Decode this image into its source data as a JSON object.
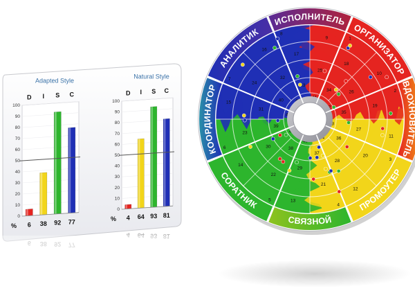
{
  "colors": {
    "red": "#e52420",
    "yellow": "#f2d51a",
    "green": "#2db52d",
    "blue": "#1f2fb5",
    "purple": "#7a2f8f",
    "bg_card": "#f4f4f6"
  },
  "chart_data": [
    {
      "type": "bar",
      "title": "Adapted Style",
      "categories": [
        "D",
        "I",
        "S",
        "C"
      ],
      "values": [
        6,
        38,
        92,
        77
      ],
      "percent_label": "%",
      "ylim": [
        0,
        100
      ],
      "yticks": [
        0,
        10,
        20,
        30,
        40,
        50,
        60,
        70,
        80,
        90,
        100
      ],
      "midline": 50
    },
    {
      "type": "bar",
      "title": "Natural Style",
      "categories": [
        "D",
        "I",
        "S",
        "C"
      ],
      "values": [
        4,
        64,
        93,
        81
      ],
      "percent_label": "%",
      "ylim": [
        0,
        100
      ],
      "yticks": [
        0,
        10,
        20,
        30,
        40,
        50,
        60,
        70,
        80,
        90,
        100
      ],
      "midline": 50
    }
  ],
  "wheel": {
    "segments": [
      {
        "label": "ИСПОЛНИТЕЛЬ",
        "icon": "segment-executor"
      },
      {
        "label": "ОРГАНИЗАТОР",
        "icon": "segment-organizer"
      },
      {
        "label": "ВДОХНОВИТЕЛЬ",
        "icon": "segment-inspirer"
      },
      {
        "label": "ПРОМОУТЕР",
        "icon": "segment-promoter"
      },
      {
        "label": "СВЯЗНОЙ",
        "icon": "segment-liaison"
      },
      {
        "label": "СОРАТНИК",
        "icon": "segment-associate"
      },
      {
        "label": "КООРДИНАТОР",
        "icon": "segment-coordinator"
      },
      {
        "label": "АНАЛИТИК",
        "icon": "segment-analyst"
      }
    ],
    "rim_numbers": [
      "8",
      "1",
      "2",
      "3",
      "4",
      "5",
      "6",
      "7"
    ],
    "grid_numbers": [
      "9",
      "10",
      "11",
      "12",
      "13",
      "14",
      "15",
      "16",
      "17",
      "18",
      "19",
      "20",
      "21",
      "22",
      "23",
      "24",
      "25",
      "26",
      "27",
      "28",
      "29",
      "30",
      "31",
      "32",
      "33",
      "34",
      "35",
      "36",
      "37",
      "38",
      "39",
      "40",
      "41",
      "42",
      "43",
      "44",
      "45",
      "46",
      "47",
      "48",
      "49",
      "50",
      "51",
      "52",
      "53",
      "54",
      "55",
      "56",
      "57",
      "58",
      "59",
      "60"
    ]
  }
}
